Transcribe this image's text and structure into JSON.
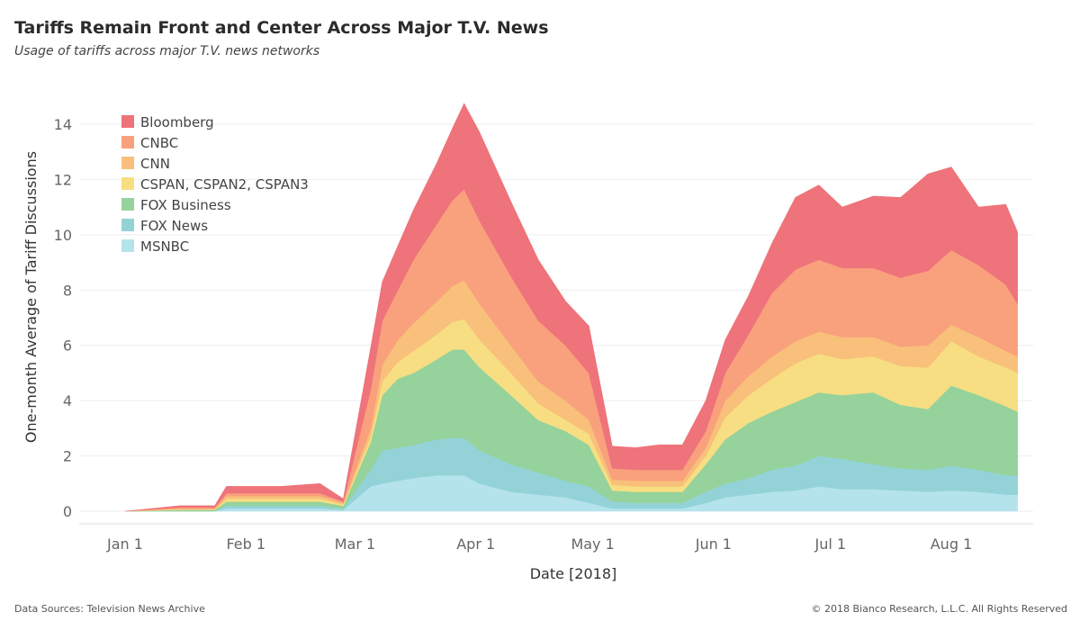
{
  "title": "Tariffs Remain Front and Center Across Major T.V. News",
  "subtitle": "Usage of tariffs across major T.V. news networks",
  "footer": {
    "source": "Data Sources: Television News Archive",
    "copyright": "© 2018 Bianco Research, L.L.C. All Rights Reserved"
  },
  "chart_data": {
    "type": "area",
    "stacked": true,
    "xlabel": "Date [2018]",
    "ylabel": "One-month Average of Tariff Discussions",
    "x_ticks": [
      "Jan 1",
      "Feb 1",
      "Mar 1",
      "Apr 1",
      "May 1",
      "Jun 1",
      "Jul 1",
      "Aug 1"
    ],
    "y_ticks": [
      0,
      2,
      4,
      6,
      8,
      10,
      12,
      14
    ],
    "ylim": [
      -0.4,
      15.2
    ],
    "grid": true,
    "legend_position": "top-left",
    "x": [
      "2018-01-01",
      "2018-01-15",
      "2018-01-24",
      "2018-01-27",
      "2018-02-10",
      "2018-02-20",
      "2018-02-26",
      "2018-03-05",
      "2018-03-08",
      "2018-03-12",
      "2018-03-16",
      "2018-03-22",
      "2018-03-26",
      "2018-03-29",
      "2018-04-02",
      "2018-04-10",
      "2018-04-17",
      "2018-04-24",
      "2018-04-30",
      "2018-05-06",
      "2018-05-12",
      "2018-05-18",
      "2018-05-24",
      "2018-05-30",
      "2018-06-04",
      "2018-06-10",
      "2018-06-16",
      "2018-06-22",
      "2018-06-28",
      "2018-07-04",
      "2018-07-12",
      "2018-07-19",
      "2018-07-26",
      "2018-08-01",
      "2018-08-08",
      "2018-08-15",
      "2018-08-18"
    ],
    "series": [
      {
        "name": "MSNBC",
        "color": "#b5e3ec",
        "values": [
          0,
          0,
          0,
          0.1,
          0.1,
          0.1,
          0.05,
          0.9,
          1.0,
          1.1,
          1.2,
          1.3,
          1.3,
          1.3,
          1.0,
          0.7,
          0.6,
          0.5,
          0.3,
          0.1,
          0.1,
          0.1,
          0.1,
          0.3,
          0.5,
          0.6,
          0.7,
          0.75,
          0.9,
          0.8,
          0.8,
          0.75,
          0.7,
          0.75,
          0.7,
          0.6,
          0.6
        ]
      },
      {
        "name": "FOX News",
        "color": "#93d3d8",
        "values": [
          0,
          0,
          0,
          0.1,
          0.1,
          0.1,
          0.05,
          0.6,
          1.2,
          1.2,
          1.2,
          1.3,
          1.35,
          1.35,
          1.2,
          1.0,
          0.8,
          0.6,
          0.6,
          0.25,
          0.2,
          0.2,
          0.2,
          0.4,
          0.5,
          0.6,
          0.8,
          0.9,
          1.1,
          1.1,
          0.9,
          0.8,
          0.8,
          0.9,
          0.8,
          0.7,
          0.7
        ]
      },
      {
        "name": "FOX Business",
        "color": "#96d29b",
        "values": [
          0,
          0.05,
          0.05,
          0.15,
          0.15,
          0.15,
          0.1,
          1.0,
          2.0,
          2.5,
          2.6,
          2.9,
          3.2,
          3.2,
          3.0,
          2.5,
          1.9,
          1.8,
          1.5,
          0.4,
          0.4,
          0.4,
          0.4,
          1.0,
          1.6,
          2.0,
          2.1,
          2.3,
          2.3,
          2.3,
          2.6,
          2.3,
          2.2,
          2.9,
          2.7,
          2.5,
          2.3
        ]
      },
      {
        "name": "CSPAN, CSPAN2, CSPAN3",
        "color": "#f7de82",
        "values": [
          0,
          0.02,
          0.02,
          0.1,
          0.1,
          0.1,
          0.05,
          0.2,
          0.5,
          0.6,
          0.8,
          0.9,
          1.0,
          1.1,
          1.0,
          0.8,
          0.6,
          0.4,
          0.4,
          0.2,
          0.2,
          0.2,
          0.2,
          0.3,
          0.8,
          1.0,
          1.2,
          1.4,
          1.4,
          1.3,
          1.3,
          1.4,
          1.5,
          1.6,
          1.4,
          1.4,
          1.4
        ]
      },
      {
        "name": "CNN",
        "color": "#f8c07a",
        "values": [
          0,
          0.02,
          0.02,
          0.1,
          0.1,
          0.1,
          0.05,
          0.3,
          0.6,
          0.8,
          1.0,
          1.2,
          1.3,
          1.4,
          1.3,
          1.0,
          0.8,
          0.7,
          0.5,
          0.2,
          0.2,
          0.2,
          0.2,
          0.3,
          0.6,
          0.7,
          0.8,
          0.8,
          0.8,
          0.8,
          0.7,
          0.7,
          0.8,
          0.6,
          0.7,
          0.6,
          0.6
        ]
      },
      {
        "name": "CNBC",
        "color": "#f9a07d",
        "values": [
          0,
          0.05,
          0.05,
          0.1,
          0.1,
          0.1,
          0.05,
          1.4,
          1.6,
          1.8,
          2.3,
          2.8,
          3.1,
          3.3,
          3.0,
          2.5,
          2.2,
          2.0,
          1.7,
          0.4,
          0.4,
          0.4,
          0.4,
          0.6,
          1.0,
          1.5,
          2.3,
          2.6,
          2.6,
          2.5,
          2.5,
          2.5,
          2.7,
          2.7,
          2.6,
          2.4,
          1.9
        ]
      },
      {
        "name": "Bloomberg",
        "color": "#ee737a",
        "values": [
          0,
          0.06,
          0.06,
          0.25,
          0.25,
          0.35,
          0.1,
          1.5,
          1.4,
          1.6,
          1.8,
          2.2,
          2.6,
          3.1,
          3.2,
          2.7,
          2.2,
          1.6,
          1.7,
          0.8,
          0.8,
          0.9,
          0.9,
          1.1,
          1.2,
          1.4,
          1.8,
          2.6,
          2.7,
          2.2,
          2.6,
          2.9,
          3.5,
          3.0,
          2.1,
          2.9,
          2.6
        ]
      }
    ]
  }
}
